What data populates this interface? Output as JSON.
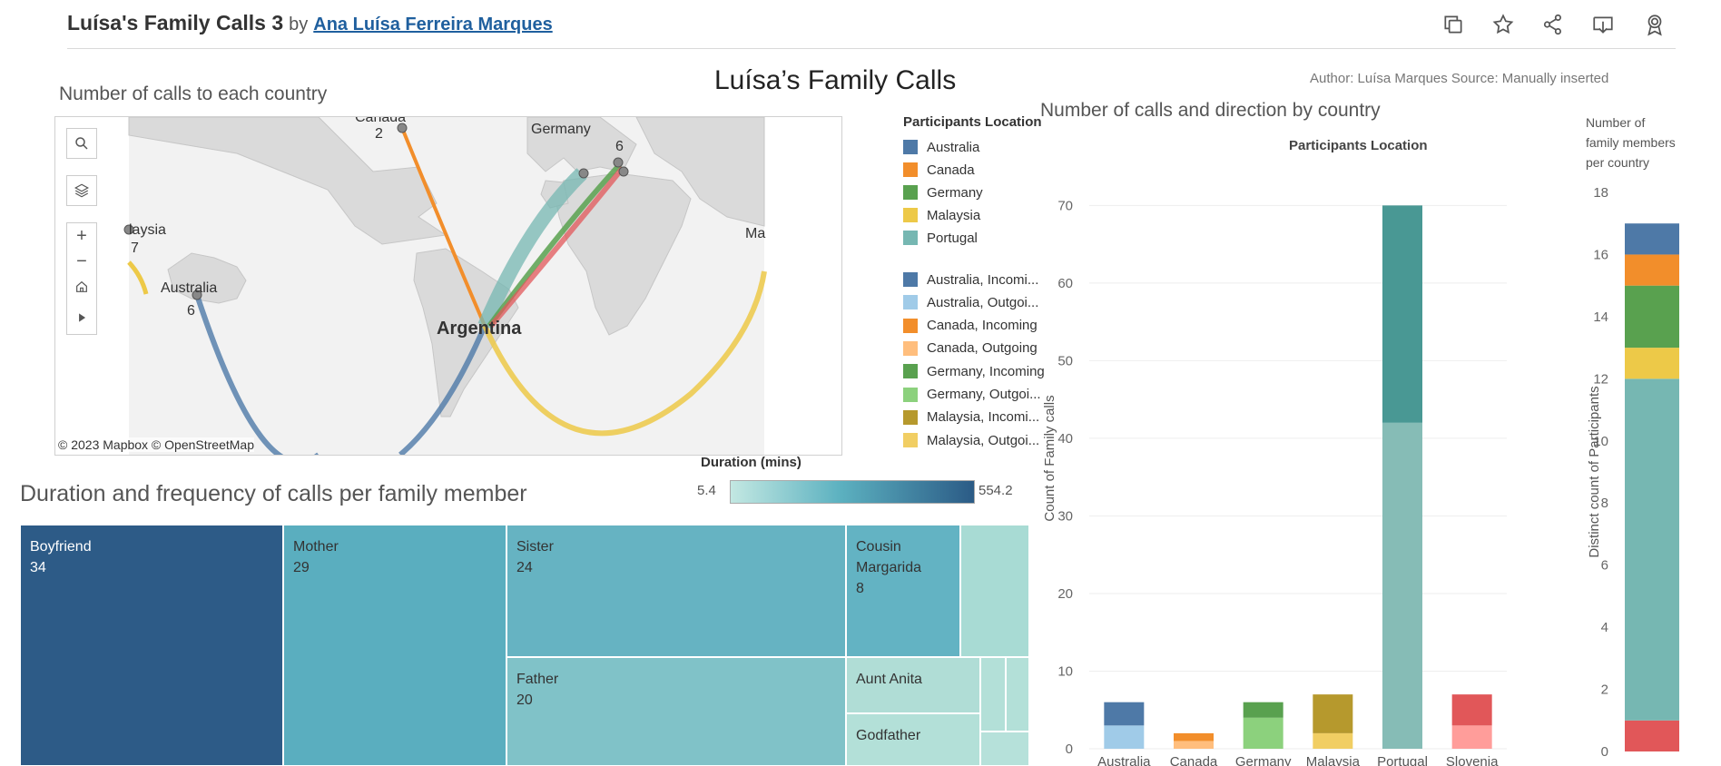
{
  "header": {
    "title": "Luísa's Family Calls 3",
    "by": "by",
    "author": "Ana Luísa Ferreira Marques",
    "icons": [
      "copy-icon",
      "star-icon",
      "share-icon",
      "download-icon",
      "badge-icon"
    ]
  },
  "dashboard": {
    "main_title": "Luísa’s Family Calls",
    "credits": "Author: Luísa Marques   Source: Manually inserted",
    "map_title": "Number of calls to each country",
    "treemap_title": "Duration and frequency of calls per family member",
    "bars_title": "Number of calls and direction by country",
    "bars_subtitle": "Participants Location",
    "family_count_title_1": "Number of",
    "family_count_title_2": "family members",
    "family_count_title_3": "per country"
  },
  "map": {
    "labels": {
      "canada_name": "Canada",
      "canada_count": "2",
      "germany_name": "Germany",
      "germany_count": "6",
      "malaysia_name": "laysia",
      "malaysia_count": "7",
      "australia_name": "Australia",
      "australia_count": "6",
      "argentina_name": "Argentina",
      "ma_name": "Ma"
    },
    "attribution": "© 2023 Mapbox  © OpenStreetMap"
  },
  "legend_location": {
    "title": "Participants Location",
    "items": [
      {
        "label": "Australia",
        "color": "#4e79a7"
      },
      {
        "label": "Canada",
        "color": "#f28e2b"
      },
      {
        "label": "Germany",
        "color": "#59a14f"
      },
      {
        "label": "Malaysia",
        "color": "#edc948"
      },
      {
        "label": "Portugal",
        "color": "#76b7b2"
      }
    ]
  },
  "legend_direction": {
    "items": [
      {
        "label": "Australia, Incomi...",
        "color": "#4e79a7"
      },
      {
        "label": "Australia, Outgoi...",
        "color": "#a0cbe8"
      },
      {
        "label": "Canada, Incoming",
        "color": "#f28e2b"
      },
      {
        "label": "Canada, Outgoing",
        "color": "#ffbe7d"
      },
      {
        "label": "Germany, Incoming",
        "color": "#59a14f"
      },
      {
        "label": "Germany, Outgoi...",
        "color": "#8cd17d"
      },
      {
        "label": "Malaysia, Incomi...",
        "color": "#b6992d"
      },
      {
        "label": "Malaysia, Outgoi...",
        "color": "#f1ce63"
      }
    ]
  },
  "duration": {
    "title": "Duration (mins)",
    "min": "5.4",
    "max": "554.2"
  },
  "treemap": [
    {
      "name": "Boyfriend",
      "value": "34",
      "color": "#2d5b87",
      "text_color": "#ffffff"
    },
    {
      "name": "Mother",
      "value": "29",
      "color": "#5aaebf",
      "text_color": "#333333"
    },
    {
      "name": "Sister",
      "value": "24",
      "color": "#66b3c2",
      "text_color": "#333333"
    },
    {
      "name": "Father",
      "value": "20",
      "color": "#80c2c8",
      "text_color": "#333333"
    },
    {
      "name": "Cousin Margarida",
      "value": "8",
      "color": "#63b3c3",
      "text_color": "#333333"
    },
    {
      "name": "Aunt Anita",
      "value": "",
      "color": "#b0ddd6",
      "text_color": "#333333"
    },
    {
      "name": "Godfather",
      "value": "",
      "color": "#b3e0d8",
      "text_color": "#333333"
    },
    {
      "name": "",
      "value": "",
      "color": "#a8dbd4",
      "text_color": "#333333"
    },
    {
      "name": "",
      "value": "",
      "color": "#b3e0d8",
      "text_color": "#333333"
    },
    {
      "name": "",
      "value": "",
      "color": "#b3e0d8",
      "text_color": "#333333"
    },
    {
      "name": "",
      "value": "",
      "color": "#b6e1da",
      "text_color": "#333333"
    }
  ],
  "chart_data": [
    {
      "type": "bar",
      "title": "Number of calls and direction by country",
      "subtitle": "Participants Location",
      "ylabel": "Count of Family calls",
      "xlabel": "",
      "ylim": [
        0,
        70
      ],
      "y_ticks": [
        0,
        10,
        20,
        30,
        40,
        50,
        60,
        70
      ],
      "categories": [
        "Australia",
        "Canada",
        "Germany",
        "Malaysia",
        "Portugal",
        "Slovenia"
      ],
      "stacked": true,
      "grid": true,
      "series": [
        {
          "name": "Outgoing",
          "values": [
            3,
            1,
            4,
            2,
            42,
            3
          ],
          "colors": [
            "#a0cbe8",
            "#ffbe7d",
            "#8cd17d",
            "#f1ce63",
            "#86bcb6",
            "#ff9d9a"
          ]
        },
        {
          "name": "Incoming",
          "values": [
            3,
            1,
            2,
            5,
            28,
            4
          ],
          "colors": [
            "#4e79a7",
            "#f28e2b",
            "#59a14f",
            "#b6992d",
            "#499894",
            "#e15759"
          ]
        }
      ]
    },
    {
      "type": "bar",
      "title": "Number of family members per country",
      "ylabel": "Distinct count of Participants",
      "ylim": [
        0,
        18
      ],
      "y_ticks": [
        0,
        2,
        4,
        6,
        8,
        10,
        12,
        14,
        16,
        18
      ],
      "categories": [
        ""
      ],
      "stacked": true,
      "series": [
        {
          "name": "Slovenia",
          "values": [
            1
          ],
          "color": "#e15759"
        },
        {
          "name": "Portugal",
          "values": [
            11
          ],
          "color": "#76b7b2"
        },
        {
          "name": "Malaysia",
          "values": [
            1
          ],
          "color": "#edc948"
        },
        {
          "name": "Germany",
          "values": [
            2
          ],
          "color": "#59a14f"
        },
        {
          "name": "Canada",
          "values": [
            1
          ],
          "color": "#f28e2b"
        },
        {
          "name": "Australia",
          "values": [
            1
          ],
          "color": "#4e79a7"
        }
      ]
    }
  ]
}
